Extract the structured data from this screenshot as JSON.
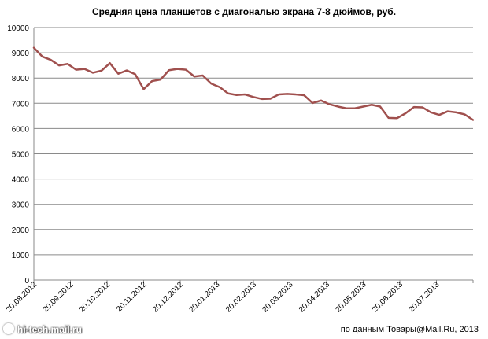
{
  "chart_data": {
    "type": "line",
    "title": "Средняя цена планшетов с диагональю экрана 7-8 дюймов, руб.",
    "xlabel": "",
    "ylabel": "",
    "ylim": [
      0,
      10000
    ],
    "yticks": [
      0,
      1000,
      2000,
      3000,
      4000,
      5000,
      6000,
      7000,
      8000,
      9000,
      10000
    ],
    "x_tick_labels": [
      "20.08.2012",
      "20.09.2012",
      "20.10.2012",
      "20.11.2012",
      "20.12.2012",
      "20.01.2013",
      "20.02.2013",
      "20.03.2013",
      "20.04.2013",
      "20.05.2013",
      "20.06.2013",
      "20.07.2013"
    ],
    "grid": "horizontal",
    "line_color": "#A0504E",
    "series": [
      {
        "values": [
          9200,
          8850,
          8720,
          8500,
          8560,
          8330,
          8360,
          8210,
          8290,
          8590,
          8170,
          8300,
          8150,
          7560,
          7880,
          7940,
          8310,
          8360,
          8330,
          8060,
          8100,
          7780,
          7640,
          7390,
          7330,
          7350,
          7250,
          7170,
          7180,
          7350,
          7370,
          7350,
          7320,
          7010,
          7110,
          6960,
          6870,
          6800,
          6800,
          6870,
          6940,
          6870,
          6420,
          6410,
          6600,
          6850,
          6840,
          6640,
          6540,
          6680,
          6640,
          6560,
          6340
        ]
      }
    ]
  },
  "footer": {
    "watermark": "hi-tech.mail.ru",
    "source": "по данным Товары@Mail.Ru, 2013"
  }
}
